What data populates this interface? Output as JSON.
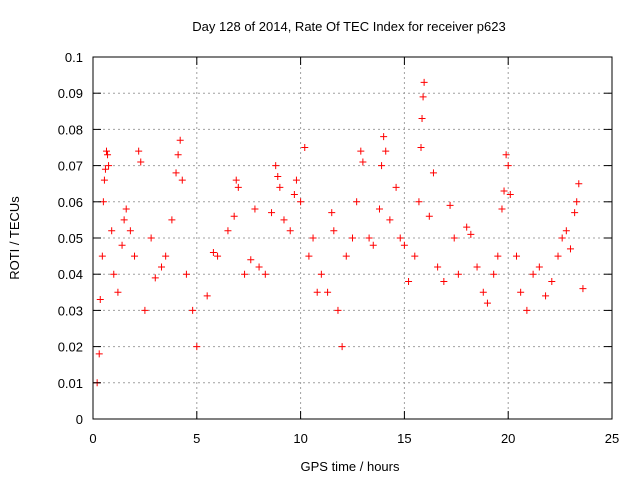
{
  "chart_data": {
    "type": "scatter",
    "title": "Day 128 of 2014, Rate Of TEC Index for receiver p623",
    "xlabel": "GPS time / hours",
    "ylabel": "ROTI / TECUs",
    "xlim": [
      0,
      25
    ],
    "ylim": [
      0,
      0.1
    ],
    "xticks": [
      0,
      5,
      10,
      15,
      20,
      25
    ],
    "xtick_labels": [
      "0",
      "5",
      "10",
      "15",
      "20",
      "25"
    ],
    "yticks": [
      0,
      0.01,
      0.02,
      0.03,
      0.04,
      0.05,
      0.06,
      0.07,
      0.08,
      0.09,
      0.1
    ],
    "ytick_labels": [
      "0",
      "0.01",
      "0.02",
      "0.03",
      "0.04",
      "0.05",
      "0.06",
      "0.07",
      "0.08",
      "0.09",
      "0.1"
    ],
    "grid": true,
    "marker": "+",
    "series": [
      {
        "name": "ROTI",
        "color": "#ff0000",
        "points": [
          [
            0.2,
            0.01
          ],
          [
            0.3,
            0.018
          ],
          [
            0.35,
            0.033
          ],
          [
            0.45,
            0.045
          ],
          [
            0.5,
            0.06
          ],
          [
            0.55,
            0.066
          ],
          [
            0.6,
            0.069
          ],
          [
            0.65,
            0.074
          ],
          [
            0.7,
            0.073
          ],
          [
            0.75,
            0.07
          ],
          [
            0.9,
            0.052
          ],
          [
            1.0,
            0.04
          ],
          [
            1.2,
            0.035
          ],
          [
            1.4,
            0.048
          ],
          [
            1.5,
            0.055
          ],
          [
            1.6,
            0.058
          ],
          [
            1.8,
            0.052
          ],
          [
            2.0,
            0.045
          ],
          [
            2.2,
            0.074
          ],
          [
            2.3,
            0.071
          ],
          [
            2.5,
            0.03
          ],
          [
            2.8,
            0.05
          ],
          [
            3.0,
            0.039
          ],
          [
            3.3,
            0.042
          ],
          [
            3.5,
            0.045
          ],
          [
            3.8,
            0.055
          ],
          [
            4.0,
            0.068
          ],
          [
            4.1,
            0.073
          ],
          [
            4.2,
            0.077
          ],
          [
            4.3,
            0.066
          ],
          [
            4.5,
            0.04
          ],
          [
            4.8,
            0.03
          ],
          [
            5.0,
            0.02
          ],
          [
            5.5,
            0.034
          ],
          [
            5.8,
            0.046
          ],
          [
            6.0,
            0.045
          ],
          [
            6.5,
            0.052
          ],
          [
            6.8,
            0.056
          ],
          [
            6.9,
            0.066
          ],
          [
            7.0,
            0.064
          ],
          [
            7.3,
            0.04
          ],
          [
            7.6,
            0.044
          ],
          [
            7.8,
            0.058
          ],
          [
            8.0,
            0.042
          ],
          [
            8.3,
            0.04
          ],
          [
            8.6,
            0.057
          ],
          [
            8.8,
            0.07
          ],
          [
            8.9,
            0.067
          ],
          [
            9.0,
            0.064
          ],
          [
            9.2,
            0.055
          ],
          [
            9.5,
            0.052
          ],
          [
            9.7,
            0.062
          ],
          [
            9.8,
            0.066
          ],
          [
            10.0,
            0.06
          ],
          [
            10.2,
            0.075
          ],
          [
            10.4,
            0.045
          ],
          [
            10.6,
            0.05
          ],
          [
            10.8,
            0.035
          ],
          [
            11.0,
            0.04
          ],
          [
            11.3,
            0.035
          ],
          [
            11.5,
            0.057
          ],
          [
            11.6,
            0.052
          ],
          [
            11.8,
            0.03
          ],
          [
            12.0,
            0.02
          ],
          [
            12.2,
            0.045
          ],
          [
            12.5,
            0.05
          ],
          [
            12.7,
            0.06
          ],
          [
            12.9,
            0.074
          ],
          [
            13.0,
            0.071
          ],
          [
            13.3,
            0.05
          ],
          [
            13.5,
            0.048
          ],
          [
            13.8,
            0.058
          ],
          [
            13.9,
            0.07
          ],
          [
            14.0,
            0.078
          ],
          [
            14.1,
            0.074
          ],
          [
            14.3,
            0.055
          ],
          [
            14.6,
            0.064
          ],
          [
            14.8,
            0.05
          ],
          [
            15.0,
            0.048
          ],
          [
            15.2,
            0.038
          ],
          [
            15.5,
            0.045
          ],
          [
            15.7,
            0.06
          ],
          [
            15.8,
            0.075
          ],
          [
            15.85,
            0.083
          ],
          [
            15.9,
            0.089
          ],
          [
            15.95,
            0.093
          ],
          [
            16.2,
            0.056
          ],
          [
            16.4,
            0.068
          ],
          [
            16.6,
            0.042
          ],
          [
            16.9,
            0.038
          ],
          [
            17.2,
            0.059
          ],
          [
            17.4,
            0.05
          ],
          [
            17.6,
            0.04
          ],
          [
            18.0,
            0.053
          ],
          [
            18.2,
            0.051
          ],
          [
            18.5,
            0.042
          ],
          [
            18.8,
            0.035
          ],
          [
            19.0,
            0.032
          ],
          [
            19.3,
            0.04
          ],
          [
            19.5,
            0.045
          ],
          [
            19.7,
            0.058
          ],
          [
            19.8,
            0.063
          ],
          [
            19.9,
            0.073
          ],
          [
            20.0,
            0.07
          ],
          [
            20.1,
            0.062
          ],
          [
            20.4,
            0.045
          ],
          [
            20.6,
            0.035
          ],
          [
            20.9,
            0.03
          ],
          [
            21.2,
            0.04
          ],
          [
            21.5,
            0.042
          ],
          [
            21.8,
            0.034
          ],
          [
            22.1,
            0.038
          ],
          [
            22.4,
            0.045
          ],
          [
            22.6,
            0.05
          ],
          [
            22.8,
            0.052
          ],
          [
            23.0,
            0.047
          ],
          [
            23.2,
            0.057
          ],
          [
            23.3,
            0.06
          ],
          [
            23.4,
            0.065
          ],
          [
            23.6,
            0.036
          ]
        ]
      }
    ]
  }
}
